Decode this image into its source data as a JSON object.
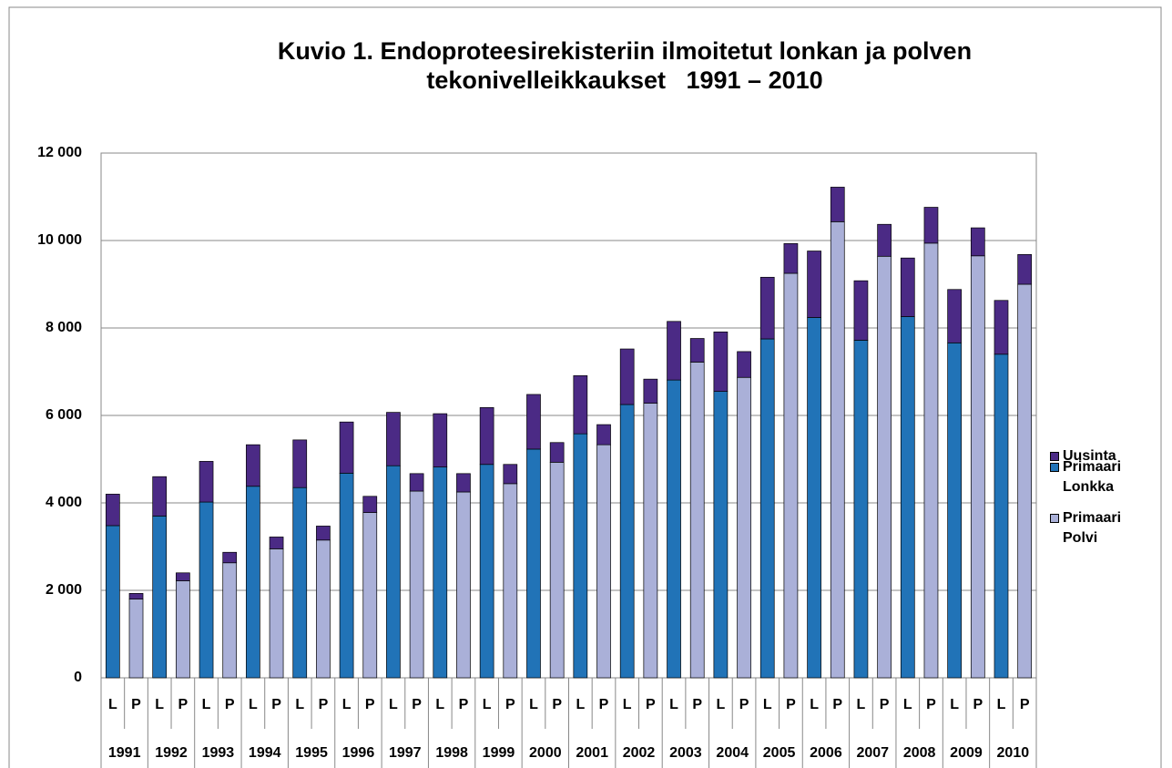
{
  "chart_data": {
    "type": "stacked_bar",
    "title": "Kuvio 1. Endoproteesirekisteriin ilmoitetut lonkan ja polven tekonivelleikkaukset   1991 – 2010",
    "categories": [
      "L",
      "P",
      "L",
      "P",
      "L",
      "P",
      "L",
      "P",
      "L",
      "P",
      "L",
      "P",
      "L",
      "P",
      "L",
      "P",
      "L",
      "P",
      "L",
      "P",
      "L",
      "P",
      "L",
      "P",
      "L",
      "P",
      "L",
      "P",
      "L",
      "P",
      "L",
      "P",
      "L",
      "P",
      "L",
      "P",
      "L",
      "P",
      "L",
      "P"
    ],
    "category_groups": [
      "1991",
      "1992",
      "1993",
      "1994",
      "1995",
      "1996",
      "1997",
      "1998",
      "1999",
      "2000",
      "2001",
      "2002",
      "2003",
      "2004",
      "2005",
      "2006",
      "2007",
      "2008",
      "2009",
      "2010"
    ],
    "series": [
      {
        "name": "Uusinta",
        "color": "#4b2a85",
        "values": [
          720,
          130,
          900,
          180,
          930,
          240,
          950,
          270,
          1090,
          320,
          1170,
          370,
          1220,
          400,
          1220,
          420,
          1300,
          440,
          1250,
          450,
          1330,
          460,
          1270,
          550,
          1340,
          540,
          1360,
          590,
          1410,
          680,
          1520,
          790,
          1360,
          730,
          1340,
          820,
          1220,
          640,
          1230,
          680
        ]
      },
      {
        "name": "Primaari Lonkka",
        "color": "#2173b7",
        "values": [
          3480,
          null,
          3700,
          null,
          4020,
          null,
          4380,
          null,
          4350,
          null,
          4680,
          null,
          4850,
          null,
          4820,
          null,
          4880,
          null,
          5230,
          null,
          5580,
          null,
          6250,
          null,
          6810,
          null,
          6550,
          null,
          7750,
          null,
          8240,
          null,
          7720,
          null,
          8260,
          null,
          7660,
          null,
          7400,
          null
        ]
      },
      {
        "name": "Primaari Polvi",
        "color": "#aab0d8",
        "values": [
          null,
          1800,
          null,
          2220,
          null,
          2630,
          null,
          2950,
          null,
          3150,
          null,
          3780,
          null,
          4270,
          null,
          4250,
          null,
          4440,
          null,
          4930,
          null,
          5330,
          null,
          6280,
          null,
          7220,
          null,
          6870,
          null,
          9250,
          null,
          10430,
          null,
          9640,
          null,
          9940,
          null,
          9650,
          null,
          9000
        ]
      }
    ],
    "ylim": [
      0,
      12000
    ],
    "yticks": [
      0,
      {
        "value": 2000,
        "label": "2 000"
      },
      {
        "value": 4000,
        "label": "4 000"
      },
      {
        "value": 6000,
        "label": "6 000"
      },
      {
        "value": 8000,
        "label": "8 000"
      },
      {
        "value": 10000,
        "label": "10 000"
      },
      {
        "value": 12000,
        "label": "12 000"
      }
    ],
    "grid": true
  }
}
